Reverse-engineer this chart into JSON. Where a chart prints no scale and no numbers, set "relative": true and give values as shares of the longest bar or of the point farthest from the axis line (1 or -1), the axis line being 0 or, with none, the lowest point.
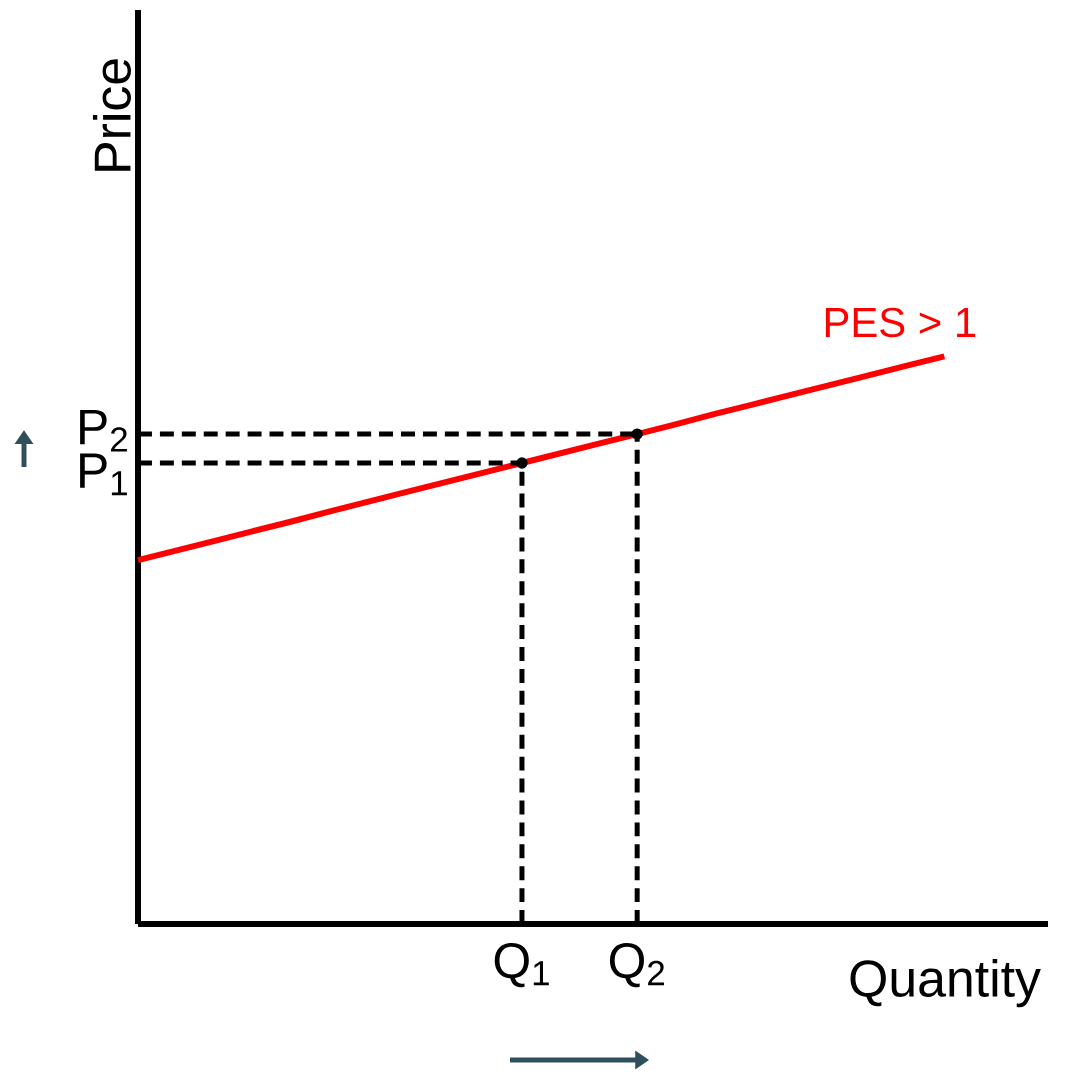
{
  "chart_data": {
    "type": "line",
    "relative": true,
    "xlabel": "Quantity",
    "ylabel": "Price",
    "categories": [
      null,
      null,
      null,
      null,
      null,
      null,
      null,
      null,
      null,
      null,
      "Q$_{1}$",
      null,
      null,
      "Q$_{2}$",
      null,
      null,
      null,
      null,
      null,
      null,
      null,
      null
    ],
    "annotations": [
      "P$_{1}$",
      "P$_{2}$"
    ],
    "series": [
      {
        "name": "PES > 1",
        "color": "#ff0000",
        "line_style": "solid",
        "values": [
          0.641,
          0.658,
          0.675,
          0.692,
          0.709,
          0.727,
          0.744,
          0.761,
          0.778,
          0.795,
          0.812,
          0.829,
          0.846,
          0.863,
          0.88,
          0.898,
          0.915,
          0.932,
          0.949,
          0.966,
          0.983,
          1
        ]
      },
      {
        "color": "#000000",
        "line_style": "dashed",
        "values": [
          0.812,
          0.812,
          0.812,
          0.812,
          0.812,
          0.812,
          0.812,
          0.812,
          0.812,
          0.812,
          0.812,
          null,
          null,
          null,
          null,
          null,
          null,
          null,
          null,
          null,
          null,
          null
        ]
      },
      {
        "color": "#000000",
        "line_style": "dashed",
        "values": [
          0.863,
          0.863,
          0.863,
          0.863,
          0.863,
          0.863,
          0.863,
          0.863,
          0.863,
          0.863,
          0.863,
          0.863,
          0.863,
          0.863,
          null,
          null,
          null,
          null,
          null,
          null,
          null,
          null
        ]
      },
      {
        "type": "lollipop",
        "marker": "circle",
        "color": "#000000",
        "line_style": "dashed",
        "values": [
          null,
          null,
          null,
          null,
          null,
          null,
          null,
          null,
          null,
          null,
          0.812,
          null,
          null,
          0.863,
          null,
          null,
          null,
          null,
          null,
          null,
          null,
          null
        ]
      }
    ],
    "marker": "none",
    "legend": false,
    "grid": false
  }
}
